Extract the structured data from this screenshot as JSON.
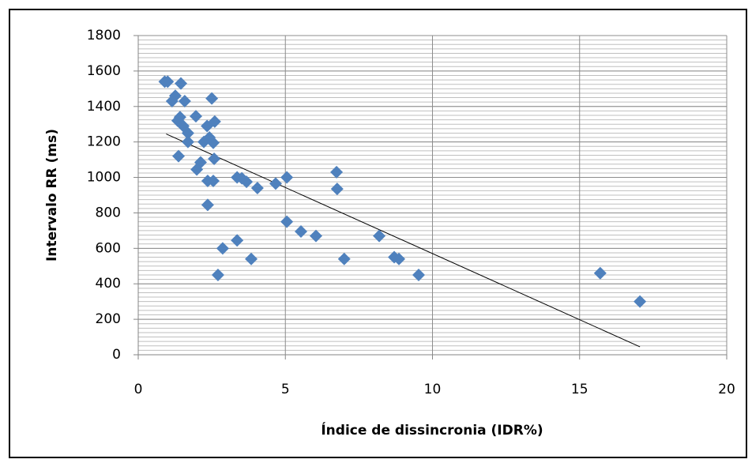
{
  "chart_data": {
    "type": "scatter",
    "x_label": "Índice de dissincronia (IDR%)",
    "y_label": "Intervalo RR (ms)",
    "color": "#4f81bd",
    "x": [
      0.9,
      1.0,
      1.45,
      1.26,
      1.15,
      1.58,
      2.5,
      1.42,
      1.34,
      1.53,
      1.96,
      2.34,
      2.6,
      1.69,
      1.69,
      2.23,
      2.42,
      2.55,
      1.37,
      2.12,
      1.99,
      2.58,
      2.36,
      2.55,
      3.36,
      3.52,
      3.68,
      4.05,
      4.67,
      5.05,
      6.74,
      6.76,
      2.36,
      5.05,
      5.53,
      6.04,
      8.19,
      8.7,
      8.86,
      7.0,
      3.84,
      3.36,
      2.87,
      2.71,
      9.53,
      15.7,
      17.05
    ],
    "values": [
      1540,
      1540,
      1530,
      1460,
      1430,
      1430,
      1445,
      1340,
      1320,
      1290,
      1345,
      1290,
      1315,
      1250,
      1200,
      1200,
      1225,
      1195,
      1120,
      1085,
      1045,
      1105,
      980,
      980,
      1000,
      995,
      975,
      940,
      965,
      1000,
      1030,
      935,
      845,
      750,
      695,
      670,
      670,
      550,
      540,
      540,
      540,
      645,
      600,
      450,
      450,
      460,
      300
    ],
    "trendline": {
      "x": [
        0.95,
        17.05
      ],
      "y": [
        1245,
        45
      ]
    },
    "xlim": [
      0,
      20
    ],
    "xticks": [
      0,
      5,
      10,
      15,
      20
    ],
    "ylim": [
      0,
      1800
    ],
    "yticks": [
      0,
      200,
      400,
      600,
      800,
      1000,
      1200,
      1400,
      1600,
      1800
    ],
    "minor_ystep": 25,
    "grid": true
  }
}
